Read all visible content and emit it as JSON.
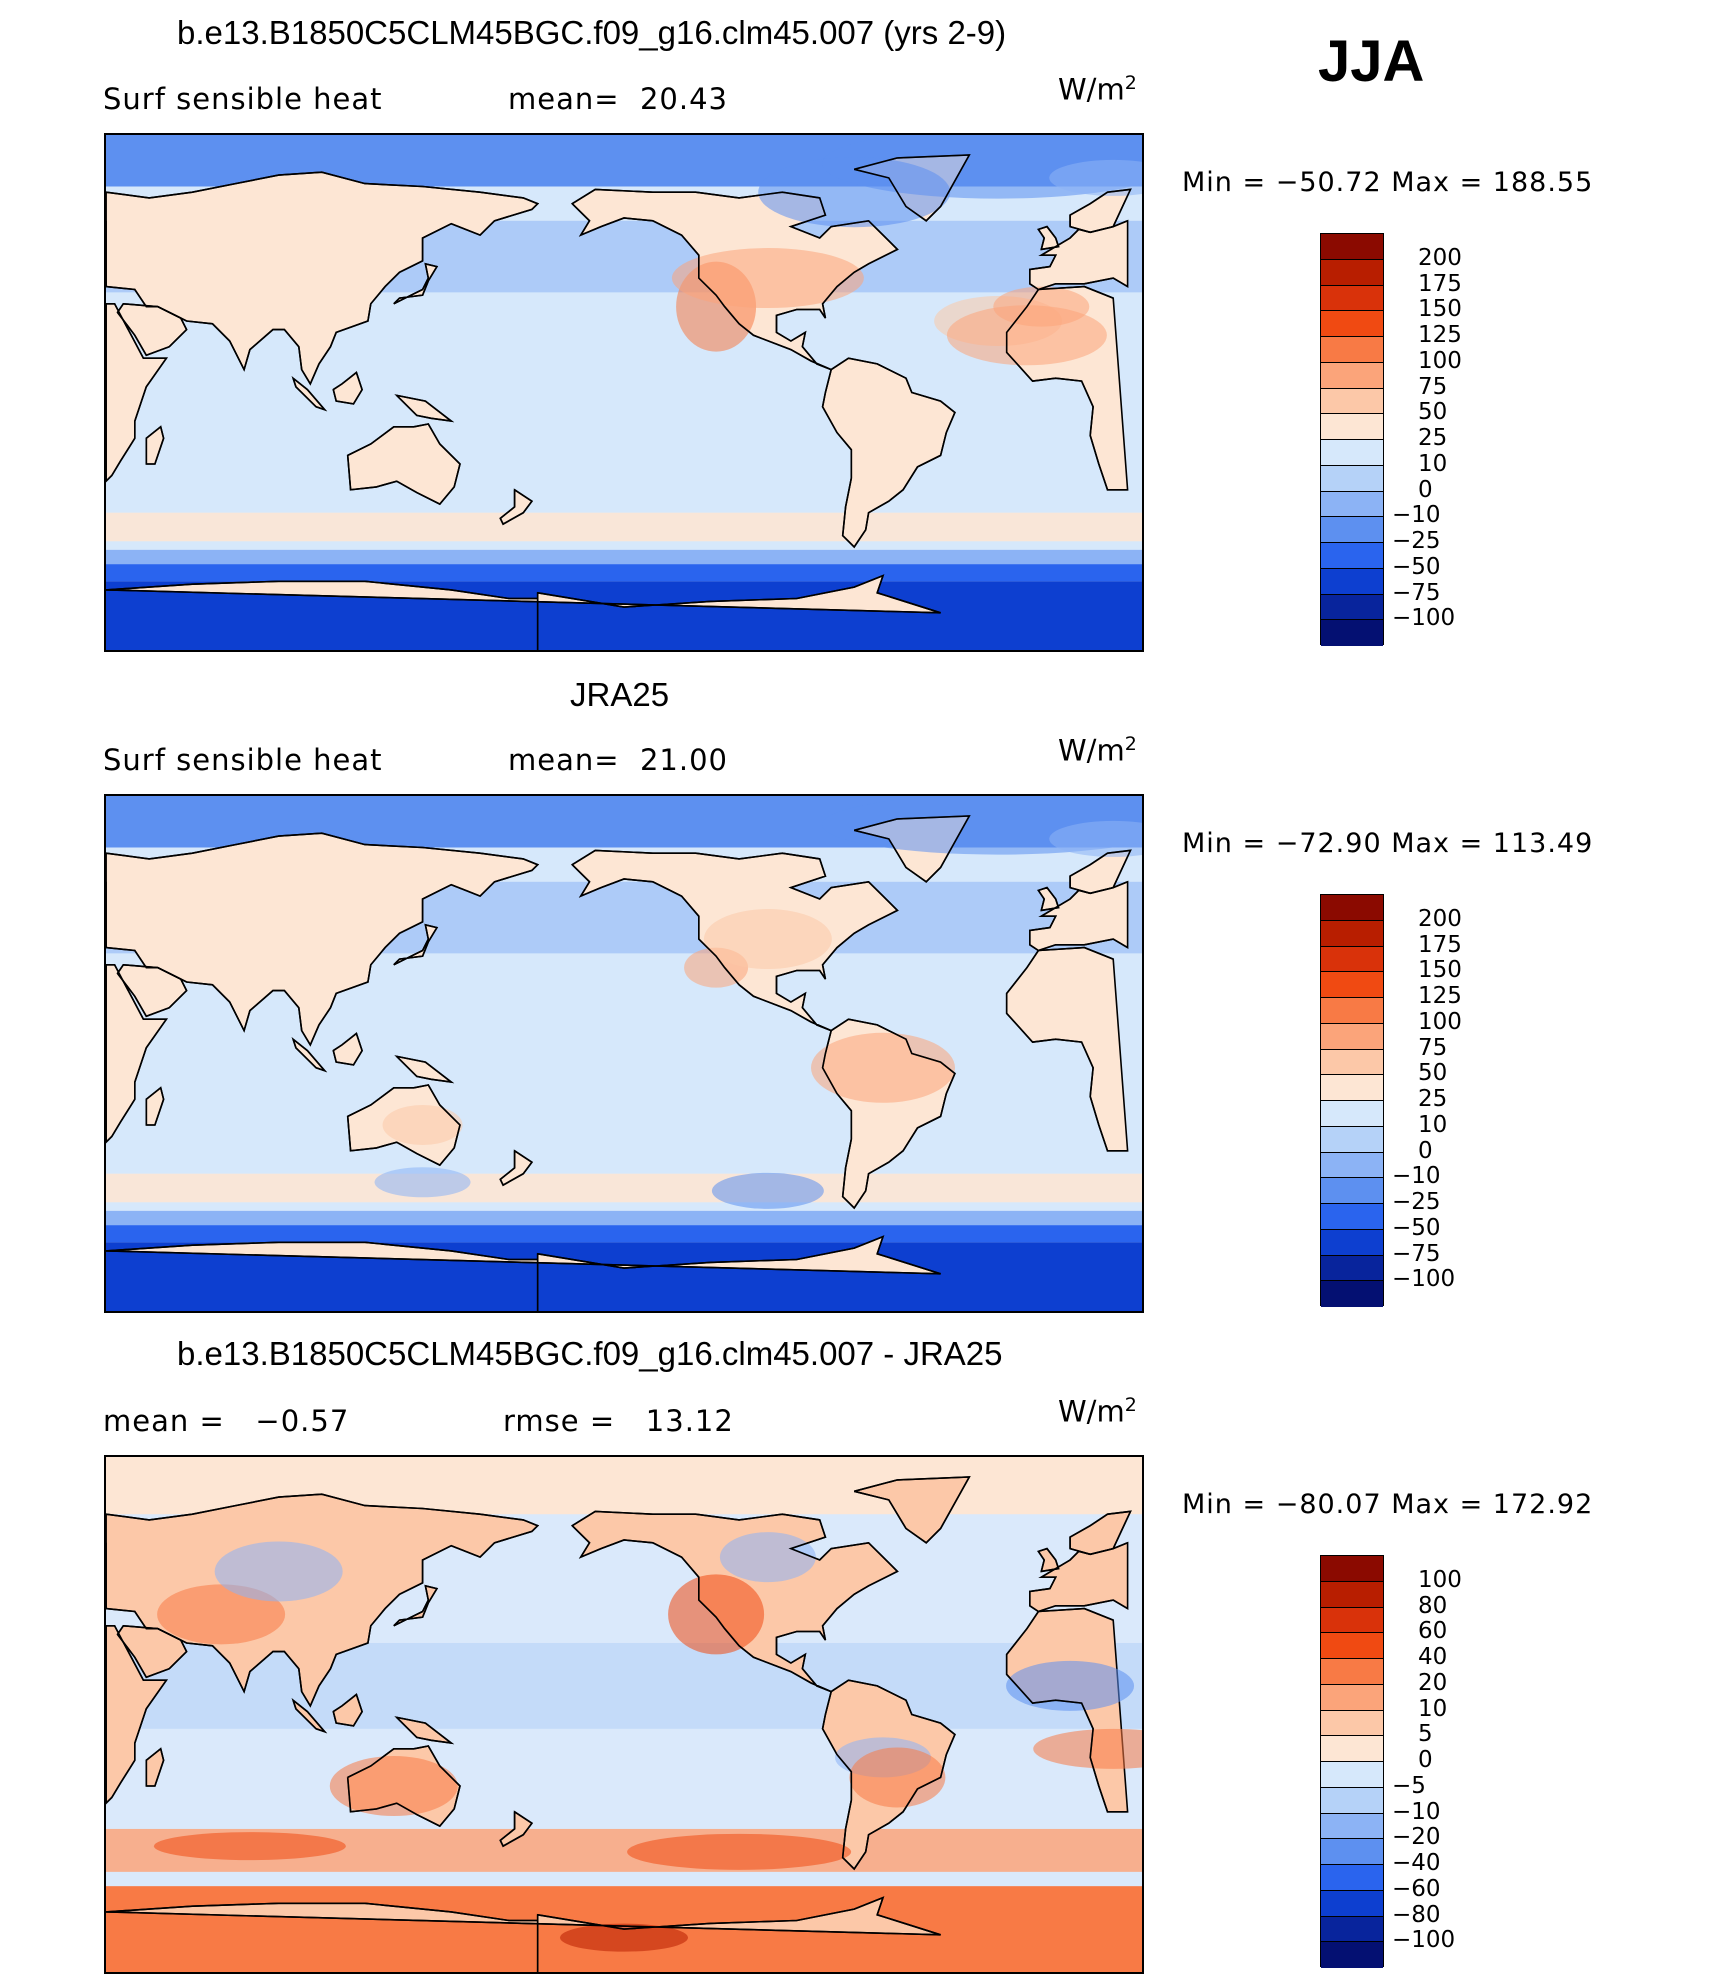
{
  "season": "JJA",
  "panels": [
    {
      "title": "b.e13.B1850C5CLM45BGC.f09_g16.clm45.007 (yrs 2-9)",
      "left_label": "Surf sensible heat",
      "stat_label": "mean=",
      "stat_value": "20.43",
      "unit_base": "W/m",
      "unit_exp": "2",
      "minmax": "Min = −50.72 Max = 188.55",
      "levels": [
        "200",
        "175",
        "150",
        "125",
        "100",
        "75",
        "50",
        "25",
        "10",
        "0",
        "−10",
        "−25",
        "−50",
        "−75",
        "−100"
      ],
      "colors": [
        "#8b0a00",
        "#b81e00",
        "#d9320a",
        "#f04a12",
        "#f87a45",
        "#fba47a",
        "#fcc8a8",
        "#fde6d4",
        "#d6e8fb",
        "#b5d2f8",
        "#8cb3f5",
        "#5d90f0",
        "#2a64ee",
        "#0d3fd0",
        "#08249c",
        "#041072"
      ],
      "ocean": "#d6e8fb",
      "land": "#fde6d4"
    },
    {
      "title": "JRA25",
      "left_label": "Surf sensible heat",
      "stat_label": "mean=",
      "stat_value": "21.00",
      "unit_base": "W/m",
      "unit_exp": "2",
      "minmax": "Min = −72.90 Max = 113.49",
      "levels": [
        "200",
        "175",
        "150",
        "125",
        "100",
        "75",
        "50",
        "25",
        "10",
        "0",
        "−10",
        "−25",
        "−50",
        "−75",
        "−100"
      ],
      "colors": [
        "#8b0a00",
        "#b81e00",
        "#d9320a",
        "#f04a12",
        "#f87a45",
        "#fba47a",
        "#fcc8a8",
        "#fde6d4",
        "#d6e8fb",
        "#b5d2f8",
        "#8cb3f5",
        "#5d90f0",
        "#2a64ee",
        "#0d3fd0",
        "#08249c",
        "#041072"
      ],
      "ocean": "#d6e8fb",
      "land": "#fde6d4"
    },
    {
      "title": "b.e13.B1850C5CLM45BGC.f09_g16.clm45.007 - JRA25",
      "left_label": "mean =",
      "left_value": "−0.57",
      "stat_label": "rmse =",
      "stat_value": "13.12",
      "unit_base": "W/m",
      "unit_exp": "2",
      "minmax": "Min = −80.07 Max = 172.92",
      "levels": [
        "100",
        "80",
        "60",
        "40",
        "20",
        "10",
        "5",
        "0",
        "−5",
        "−10",
        "−20",
        "−40",
        "−60",
        "−80",
        "−100"
      ],
      "colors": [
        "#8b0a00",
        "#b81e00",
        "#d9320a",
        "#f04a12",
        "#f87a45",
        "#fba47a",
        "#fcc8a8",
        "#fde6d4",
        "#d6e8fb",
        "#b5d2f8",
        "#8cb3f5",
        "#5d90f0",
        "#2a64ee",
        "#0d3fd0",
        "#08249c",
        "#041072"
      ],
      "ocean": "#dae9fb",
      "land": "#fcc8a8"
    }
  ]
}
